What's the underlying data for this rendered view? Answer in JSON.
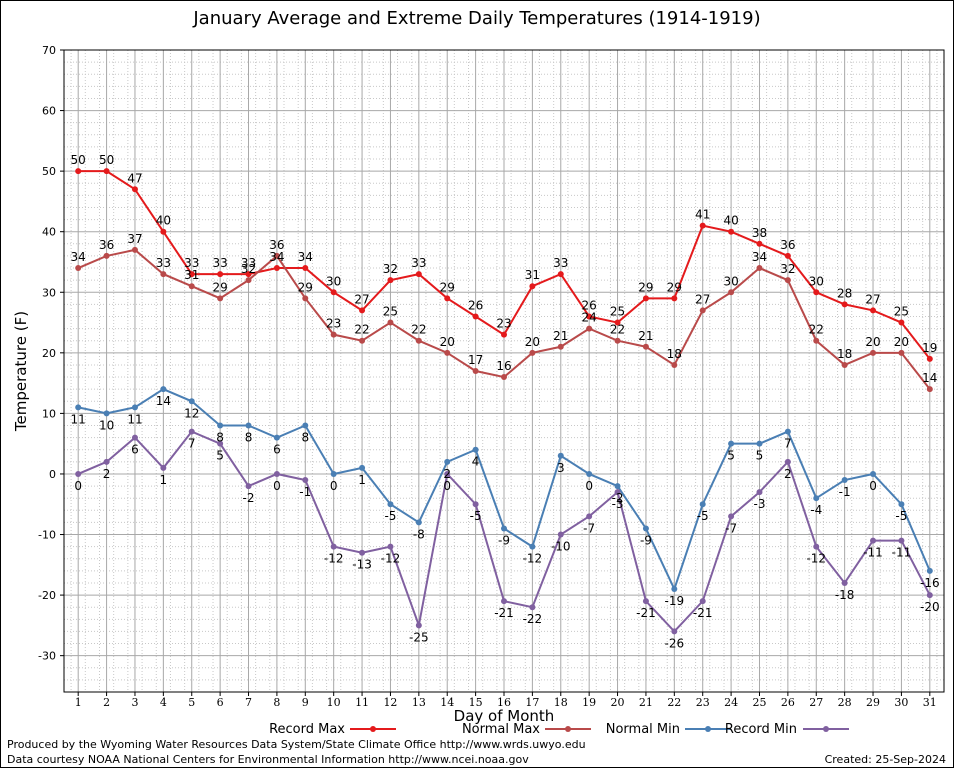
{
  "chart_data": {
    "type": "line",
    "title": "January Average and Extreme Daily Temperatures (1914-1919)",
    "xlabel": "Day of Month",
    "ylabel": "Temperature (F)",
    "ylim": [
      -36,
      70
    ],
    "yticks": [
      -30,
      -20,
      -10,
      0,
      10,
      20,
      30,
      40,
      50,
      60,
      70
    ],
    "x": [
      "1",
      "2",
      "3",
      "4",
      "5",
      "6",
      "7",
      "8",
      "9",
      "10",
      "11",
      "12",
      "13",
      "14",
      "15",
      "16",
      "17",
      "18",
      "19",
      "20",
      "21",
      "22",
      "23",
      "24",
      "25",
      "26",
      "27",
      "28",
      "29",
      "30",
      "31"
    ],
    "grid": true,
    "legend_position": "bottom",
    "series": [
      {
        "name": "Record Max",
        "color": "#e41a1c",
        "values": [
          50,
          50,
          47,
          40,
          33,
          33,
          33,
          34,
          34,
          30,
          27,
          32,
          33,
          29,
          26,
          23,
          31,
          33,
          26,
          25,
          29,
          29,
          41,
          40,
          38,
          36,
          30,
          28,
          27,
          25,
          19
        ]
      },
      {
        "name": "Normal Max",
        "color": "#b94a4a",
        "values": [
          34,
          36,
          37,
          33,
          31,
          29,
          32,
          36,
          29,
          23,
          22,
          25,
          22,
          20,
          17,
          16,
          20,
          21,
          24,
          22,
          21,
          18,
          27,
          30,
          34,
          32,
          22,
          18,
          20,
          20,
          14
        ]
      },
      {
        "name": "Normal Min",
        "color": "#4a7fb4",
        "values": [
          11,
          10,
          11,
          14,
          12,
          8,
          8,
          6,
          8,
          0,
          1,
          -5,
          -8,
          2,
          4,
          -9,
          -12,
          3,
          0,
          -2,
          -9,
          -19,
          -5,
          5,
          5,
          7,
          -4,
          -1,
          0,
          -5,
          -16
        ]
      },
      {
        "name": "Record Min",
        "color": "#8060a0",
        "values": [
          0,
          2,
          6,
          1,
          7,
          5,
          -2,
          0,
          -1,
          -12,
          -13,
          -12,
          -25,
          0,
          -5,
          -21,
          -22,
          -10,
          -7,
          -3,
          -21,
          -26,
          -21,
          -7,
          -3,
          2,
          -12,
          -18,
          -11,
          -11,
          -20
        ]
      }
    ]
  },
  "footer": {
    "line1": "Produced by the Wyoming Water Resources Data System/State Climate Office http://www.wrds.uwyo.edu",
    "line2": "Data courtesy NOAA National Centers for Environmental Information http://www.ncei.noaa.gov",
    "created": "Created:  25-Sep-2024"
  }
}
